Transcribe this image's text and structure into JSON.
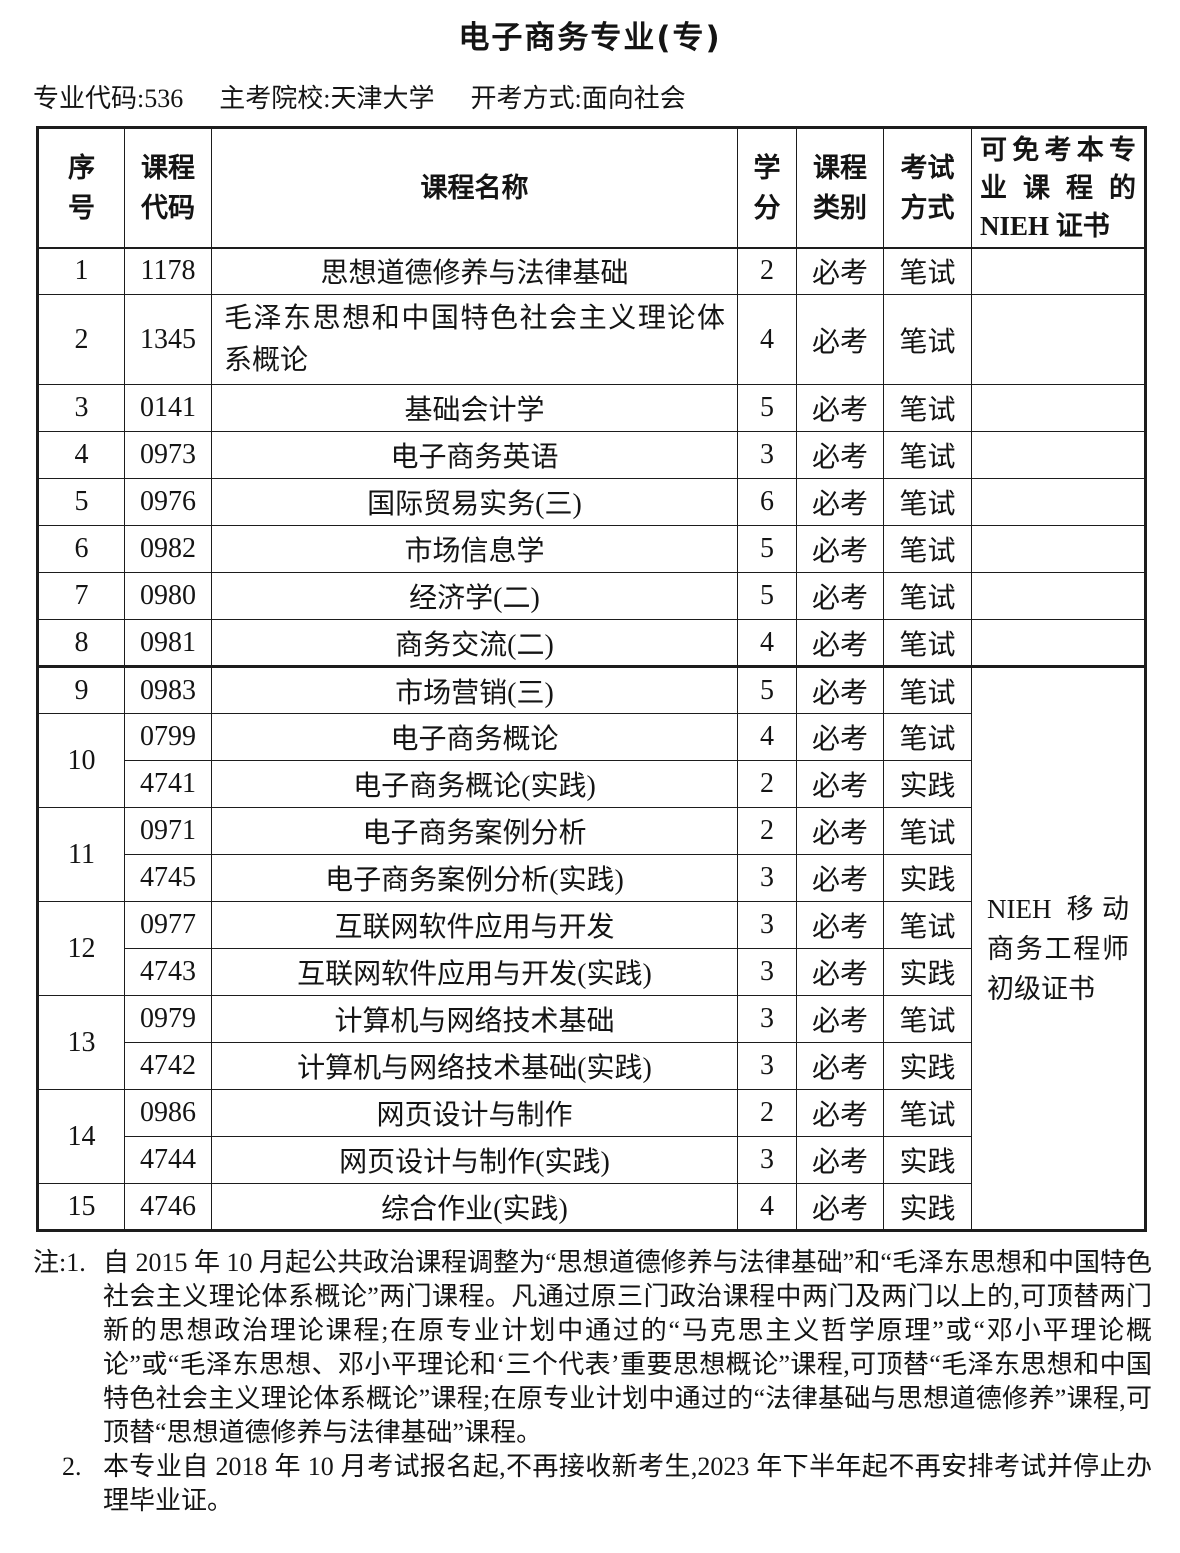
{
  "page": {
    "title": "电子商务专业(专)",
    "meta": {
      "items": [
        "专业代码:536",
        "主考院校:天津大学",
        "开考方式:面向社会"
      ]
    }
  },
  "table": {
    "headers": {
      "index": "序\n号",
      "code": "课程\n代码",
      "name": "课程名称",
      "credits": "学\n分",
      "category": "课程\n类别",
      "exam": "考试\n方式",
      "cert": "可免考本专业课程的NIEH 证书"
    },
    "cert_merged": "NIEH 移动商务工程师初级证书",
    "entries": [
      {
        "no": "1",
        "courses": [
          {
            "code": "1178",
            "name": "思想道德修养与法律基础",
            "credits": "2",
            "category": "必考",
            "exam": "笔试"
          }
        ]
      },
      {
        "no": "2",
        "courses": [
          {
            "code": "1345",
            "name": "毛泽东思想和中国特色社会主义理论体系概论",
            "credits": "4",
            "category": "必考",
            "exam": "笔试"
          }
        ]
      },
      {
        "no": "3",
        "courses": [
          {
            "code": "0141",
            "name": "基础会计学",
            "credits": "5",
            "category": "必考",
            "exam": "笔试"
          }
        ]
      },
      {
        "no": "4",
        "courses": [
          {
            "code": "0973",
            "name": "电子商务英语",
            "credits": "3",
            "category": "必考",
            "exam": "笔试"
          }
        ]
      },
      {
        "no": "5",
        "courses": [
          {
            "code": "0976",
            "name": "国际贸易实务(三)",
            "credits": "6",
            "category": "必考",
            "exam": "笔试"
          }
        ]
      },
      {
        "no": "6",
        "courses": [
          {
            "code": "0982",
            "name": "市场信息学",
            "credits": "5",
            "category": "必考",
            "exam": "笔试"
          }
        ]
      },
      {
        "no": "7",
        "courses": [
          {
            "code": "0980",
            "name": "经济学(二)",
            "credits": "5",
            "category": "必考",
            "exam": "笔试"
          }
        ]
      },
      {
        "no": "8",
        "courses": [
          {
            "code": "0981",
            "name": "商务交流(二)",
            "credits": "4",
            "category": "必考",
            "exam": "笔试"
          }
        ]
      },
      {
        "no": "9",
        "courses": [
          {
            "code": "0983",
            "name": "市场营销(三)",
            "credits": "5",
            "category": "必考",
            "exam": "笔试"
          }
        ]
      },
      {
        "no": "10",
        "courses": [
          {
            "code": "0799",
            "name": "电子商务概论",
            "credits": "4",
            "category": "必考",
            "exam": "笔试"
          },
          {
            "code": "4741",
            "name": "电子商务概论(实践)",
            "credits": "2",
            "category": "必考",
            "exam": "实践"
          }
        ]
      },
      {
        "no": "11",
        "courses": [
          {
            "code": "0971",
            "name": "电子商务案例分析",
            "credits": "2",
            "category": "必考",
            "exam": "笔试"
          },
          {
            "code": "4745",
            "name": "电子商务案例分析(实践)",
            "credits": "3",
            "category": "必考",
            "exam": "实践"
          }
        ]
      },
      {
        "no": "12",
        "courses": [
          {
            "code": "0977",
            "name": "互联网软件应用与开发",
            "credits": "3",
            "category": "必考",
            "exam": "笔试"
          },
          {
            "code": "4743",
            "name": "互联网软件应用与开发(实践)",
            "credits": "3",
            "category": "必考",
            "exam": "实践"
          }
        ]
      },
      {
        "no": "13",
        "courses": [
          {
            "code": "0979",
            "name": "计算机与网络技术基础",
            "credits": "3",
            "category": "必考",
            "exam": "笔试"
          },
          {
            "code": "4742",
            "name": "计算机与网络技术基础(实践)",
            "credits": "3",
            "category": "必考",
            "exam": "实践"
          }
        ]
      },
      {
        "no": "14",
        "courses": [
          {
            "code": "0986",
            "name": "网页设计与制作",
            "credits": "2",
            "category": "必考",
            "exam": "笔试"
          },
          {
            "code": "4744",
            "name": "网页设计与制作(实践)",
            "credits": "3",
            "category": "必考",
            "exam": "实践"
          }
        ]
      },
      {
        "no": "15",
        "courses": [
          {
            "code": "4746",
            "name": "综合作业(实践)",
            "credits": "4",
            "category": "必考",
            "exam": "实践"
          }
        ]
      }
    ],
    "cert_span_start_no": "9"
  },
  "notes": {
    "items": [
      {
        "prefix": "注:1.",
        "text": "自 2015 年 10 月起公共政治课程调整为“思想道德修养与法律基础”和“毛泽东思想和中国特色社会主义理论体系概论”两门课程。凡通过原三门政治课程中两门及两门以上的,可顶替两门新的思想政治理论课程;在原专业计划中通过的“马克思主义哲学原理”或“邓小平理论概论”或“毛泽东思想、邓小平理论和‘三个代表’重要思想概论”课程,可顶替“毛泽东思想和中国特色社会主义理论体系概论”课程;在原专业计划中通过的“法律基础与思想道德修养”课程,可顶替“思想道德修养与法律基础”课程。"
      },
      {
        "prefix": "2.",
        "text": "本专业自 2018 年 10 月考试报名起,不再接收新考生,2023 年下半年起不再安排考试并停止办理毕业证。"
      }
    ]
  }
}
